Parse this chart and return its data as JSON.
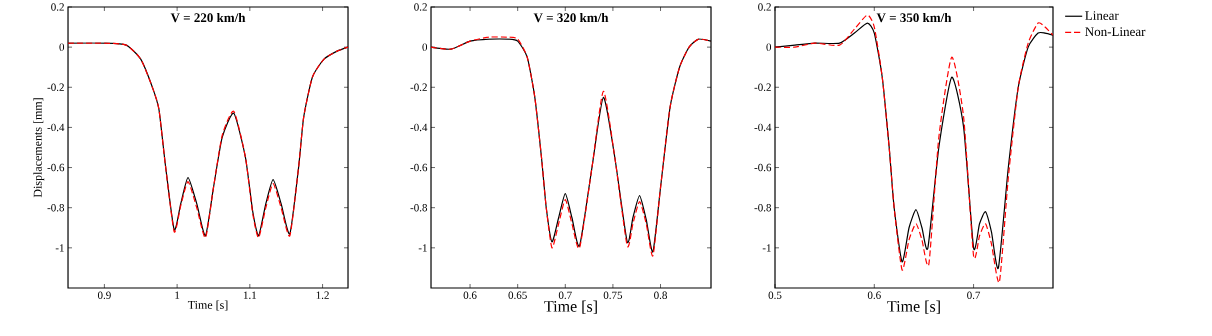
{
  "chart_data": [
    {
      "type": "line",
      "title": "V = 220 km/h",
      "xlabel": "Time [s]",
      "ylabel": "Displacements [mm]",
      "xlim": [
        0.85,
        1.235
      ],
      "ylim": [
        -1.2,
        0.2
      ],
      "xticks": [
        0.9,
        1,
        1.1,
        1.2
      ],
      "yticks": [
        -1,
        -0.8,
        -0.6,
        -0.4,
        -0.2,
        0,
        0.2
      ],
      "series": [
        {
          "color": "#000000",
          "line_style": "solid",
          "x": [
            0.85,
            0.9,
            0.93,
            0.95,
            0.966,
            0.975,
            0.984,
            0.996,
            1.005,
            1.015,
            1.027,
            1.039,
            1.05,
            1.062,
            1.078,
            1.094,
            1.104,
            1.112,
            1.122,
            1.132,
            1.143,
            1.155,
            1.167,
            1.174,
            1.186,
            1.202,
            1.22,
            1.235
          ],
          "values": [
            0.02,
            0.02,
            0.01,
            -0.06,
            -0.2,
            -0.31,
            -0.59,
            -0.91,
            -0.78,
            -0.65,
            -0.78,
            -0.94,
            -0.7,
            -0.45,
            -0.33,
            -0.55,
            -0.82,
            -0.94,
            -0.78,
            -0.66,
            -0.78,
            -0.93,
            -0.6,
            -0.35,
            -0.15,
            -0.06,
            -0.02,
            0.0
          ]
        },
        {
          "color": "#ff0000",
          "line_style": "dashed",
          "x": [
            0.85,
            0.9,
            0.93,
            0.95,
            0.966,
            0.975,
            0.984,
            0.996,
            1.005,
            1.015,
            1.027,
            1.039,
            1.05,
            1.062,
            1.078,
            1.094,
            1.104,
            1.112,
            1.122,
            1.132,
            1.143,
            1.155,
            1.167,
            1.174,
            1.186,
            1.202,
            1.22,
            1.235
          ],
          "values": [
            0.02,
            0.02,
            0.01,
            -0.06,
            -0.2,
            -0.31,
            -0.59,
            -0.92,
            -0.79,
            -0.67,
            -0.8,
            -0.95,
            -0.7,
            -0.44,
            -0.32,
            -0.55,
            -0.83,
            -0.95,
            -0.8,
            -0.68,
            -0.8,
            -0.94,
            -0.6,
            -0.35,
            -0.15,
            -0.06,
            -0.02,
            0.0
          ]
        }
      ]
    },
    {
      "type": "line",
      "title": "V = 320 km/h",
      "xlabel": "Time [s]",
      "xlim": [
        0.559,
        0.853
      ],
      "ylim": [
        -1.2,
        0.2
      ],
      "xticks": [
        0.6,
        0.65,
        0.7,
        0.75,
        0.8
      ],
      "yticks": [
        -1,
        -0.8,
        -0.6,
        -0.4,
        -0.2,
        0,
        0.2
      ],
      "series": [
        {
          "color": "#000000",
          "line_style": "solid",
          "x": [
            0.559,
            0.58,
            0.6,
            0.62,
            0.64,
            0.65,
            0.66,
            0.668,
            0.675,
            0.68,
            0.686,
            0.693,
            0.7,
            0.707,
            0.715,
            0.728,
            0.74,
            0.752,
            0.765,
            0.771,
            0.778,
            0.785,
            0.792,
            0.8,
            0.81,
            0.82,
            0.83,
            0.84,
            0.853
          ],
          "values": [
            0.0,
            -0.01,
            0.03,
            0.04,
            0.04,
            0.03,
            -0.05,
            -0.25,
            -0.55,
            -0.8,
            -0.97,
            -0.85,
            -0.73,
            -0.85,
            -0.99,
            -0.6,
            -0.25,
            -0.55,
            -0.97,
            -0.85,
            -0.74,
            -0.86,
            -1.02,
            -0.7,
            -0.3,
            -0.1,
            0.0,
            0.04,
            0.03
          ]
        },
        {
          "color": "#ff0000",
          "line_style": "dashed",
          "x": [
            0.559,
            0.58,
            0.6,
            0.62,
            0.64,
            0.65,
            0.66,
            0.668,
            0.675,
            0.68,
            0.686,
            0.693,
            0.7,
            0.707,
            0.715,
            0.728,
            0.74,
            0.752,
            0.765,
            0.771,
            0.778,
            0.785,
            0.792,
            0.8,
            0.81,
            0.82,
            0.83,
            0.84,
            0.853
          ],
          "values": [
            0.0,
            -0.01,
            0.03,
            0.05,
            0.05,
            0.04,
            -0.05,
            -0.25,
            -0.55,
            -0.8,
            -1.0,
            -0.88,
            -0.76,
            -0.88,
            -1.0,
            -0.6,
            -0.22,
            -0.55,
            -0.99,
            -0.88,
            -0.77,
            -0.88,
            -1.04,
            -0.7,
            -0.3,
            -0.1,
            0.0,
            0.04,
            0.03
          ]
        }
      ]
    },
    {
      "type": "line",
      "title": "V = 350 km/h",
      "xlabel": "Time [s]",
      "xlim": [
        0.5,
        0.78
      ],
      "ylim": [
        -1.2,
        0.2
      ],
      "xticks": [
        0.5,
        0.6,
        0.7
      ],
      "yticks": [
        -1,
        -0.8,
        -0.6,
        -0.4,
        -0.2,
        0,
        0.2
      ],
      "legend": "right",
      "series": [
        {
          "name": "Linear",
          "color": "#000000",
          "line_style": "solid",
          "x": [
            0.5,
            0.52,
            0.54,
            0.565,
            0.58,
            0.593,
            0.6,
            0.608,
            0.615,
            0.62,
            0.628,
            0.635,
            0.642,
            0.648,
            0.654,
            0.665,
            0.678,
            0.69,
            0.7,
            0.706,
            0.712,
            0.718,
            0.725,
            0.735,
            0.745,
            0.755,
            0.765,
            0.772,
            0.78
          ],
          "values": [
            0.0,
            0.01,
            0.02,
            0.02,
            0.07,
            0.12,
            0.07,
            -0.15,
            -0.5,
            -0.8,
            -1.07,
            -0.9,
            -0.81,
            -0.9,
            -1.0,
            -0.5,
            -0.15,
            -0.4,
            -1.0,
            -0.88,
            -0.82,
            -0.92,
            -1.1,
            -0.6,
            -0.2,
            0.0,
            0.07,
            0.07,
            0.06
          ]
        },
        {
          "name": "Non-Linear",
          "color": "#ff0000",
          "line_style": "dashed",
          "x": [
            0.5,
            0.52,
            0.54,
            0.565,
            0.58,
            0.593,
            0.6,
            0.608,
            0.615,
            0.62,
            0.628,
            0.635,
            0.642,
            0.648,
            0.655,
            0.665,
            0.678,
            0.69,
            0.7,
            0.706,
            0.712,
            0.718,
            0.726,
            0.735,
            0.745,
            0.755,
            0.765,
            0.772,
            0.78
          ],
          "values": [
            0.0,
            0.0,
            0.02,
            0.01,
            0.09,
            0.16,
            0.1,
            -0.15,
            -0.5,
            -0.8,
            -1.11,
            -0.96,
            -0.88,
            -0.96,
            -1.08,
            -0.45,
            -0.05,
            -0.35,
            -1.04,
            -0.94,
            -0.88,
            -0.98,
            -1.17,
            -0.65,
            -0.2,
            0.02,
            0.12,
            0.1,
            0.06
          ]
        }
      ]
    }
  ]
}
